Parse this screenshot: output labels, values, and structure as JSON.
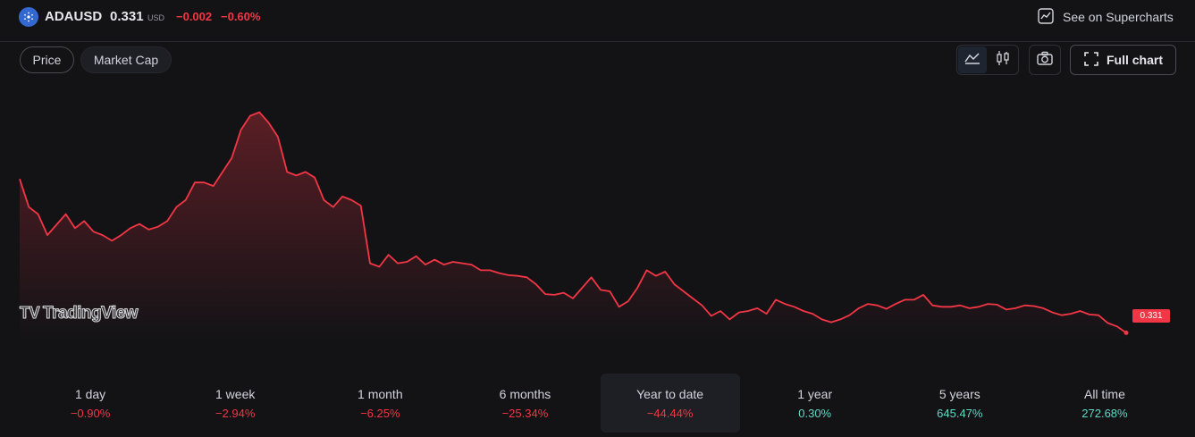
{
  "header": {
    "symbol": "ADAUSD",
    "price": "0.331",
    "currency": "USD",
    "change": "−0.002",
    "change_percent": "−0.60%",
    "supercharts_label": "See on Supercharts",
    "logo_icon": "cardano-logo-icon",
    "negative_color": "#f23645"
  },
  "tabs": [
    {
      "label": "Price",
      "selected": true
    },
    {
      "label": "Market Cap",
      "selected": false
    }
  ],
  "toolbar": {
    "area_chart_icon": "area-chart-icon",
    "candle_icon": "candlestick-icon",
    "camera_icon": "camera-icon",
    "full_chart_label": "Full chart",
    "chart_style_selected": "area"
  },
  "chart": {
    "watermark": "TradingView",
    "last_price_label": "0.331",
    "line_color": "#f23645"
  },
  "chart_data": {
    "type": "area",
    "x": [
      0,
      1,
      2,
      3,
      4,
      5,
      6,
      7,
      8,
      9,
      10,
      11,
      12,
      13,
      14,
      15,
      16,
      17,
      18,
      19,
      20,
      21,
      22,
      23,
      24,
      25,
      26,
      27,
      28,
      29,
      30,
      31,
      32,
      33,
      34,
      35,
      36,
      37,
      38,
      39,
      40,
      41,
      42,
      43,
      44,
      45,
      46,
      47,
      48,
      49,
      50,
      51,
      52,
      53,
      54,
      55,
      56,
      57,
      58,
      59,
      60,
      61,
      62,
      63,
      64,
      65,
      66,
      67,
      68,
      69,
      70,
      71,
      72,
      73,
      74,
      75,
      76,
      77,
      78,
      79,
      80,
      81,
      82,
      83,
      84,
      85,
      86,
      87,
      88,
      89,
      90,
      91,
      92,
      93,
      94,
      95,
      96,
      97,
      98,
      99,
      100,
      101,
      102,
      103,
      104,
      105,
      106,
      107,
      108,
      109,
      110,
      111,
      112,
      113,
      114,
      115,
      116,
      117,
      118,
      119,
      120
    ],
    "values": [
      0.55,
      0.51,
      0.5,
      0.47,
      0.485,
      0.5,
      0.48,
      0.49,
      0.475,
      0.47,
      0.462,
      0.47,
      0.48,
      0.486,
      0.478,
      0.482,
      0.49,
      0.51,
      0.52,
      0.545,
      0.545,
      0.54,
      0.56,
      0.58,
      0.62,
      0.64,
      0.645,
      0.63,
      0.61,
      0.56,
      0.555,
      0.56,
      0.552,
      0.52,
      0.51,
      0.525,
      0.52,
      0.512,
      0.43,
      0.425,
      0.442,
      0.43,
      0.432,
      0.44,
      0.428,
      0.435,
      0.428,
      0.432,
      0.43,
      0.428,
      0.42,
      0.42,
      0.416,
      0.413,
      0.412,
      0.41,
      0.4,
      0.386,
      0.385,
      0.388,
      0.38,
      0.395,
      0.41,
      0.392,
      0.39,
      0.368,
      0.376,
      0.395,
      0.42,
      0.412,
      0.418,
      0.4,
      0.39,
      0.38,
      0.37,
      0.355,
      0.362,
      0.35,
      0.36,
      0.362,
      0.366,
      0.358,
      0.378,
      0.372,
      0.368,
      0.362,
      0.358,
      0.35,
      0.346,
      0.35,
      0.356,
      0.366,
      0.372,
      0.37,
      0.365,
      0.372,
      0.378,
      0.378,
      0.385,
      0.37,
      0.368,
      0.368,
      0.37,
      0.366,
      0.368,
      0.372,
      0.371,
      0.364,
      0.366,
      0.37,
      0.369,
      0.366,
      0.36,
      0.356,
      0.358,
      0.362,
      0.357,
      0.356,
      0.345,
      0.34,
      0.331
    ],
    "ylim": [
      0.32,
      0.67
    ],
    "last_value": 0.331
  },
  "periods": [
    {
      "label": "1 day",
      "value": "−0.90%",
      "trend": "down",
      "active": false
    },
    {
      "label": "1 week",
      "value": "−2.94%",
      "trend": "down",
      "active": false
    },
    {
      "label": "1 month",
      "value": "−6.25%",
      "trend": "down",
      "active": false
    },
    {
      "label": "6 months",
      "value": "−25.34%",
      "trend": "down",
      "active": false
    },
    {
      "label": "Year to date",
      "value": "−44.44%",
      "trend": "down",
      "active": true
    },
    {
      "label": "1 year",
      "value": "0.30%",
      "trend": "up",
      "active": false
    },
    {
      "label": "5 years",
      "value": "645.47%",
      "trend": "up",
      "active": false
    },
    {
      "label": "All time",
      "value": "272.68%",
      "trend": "up",
      "active": false
    }
  ]
}
